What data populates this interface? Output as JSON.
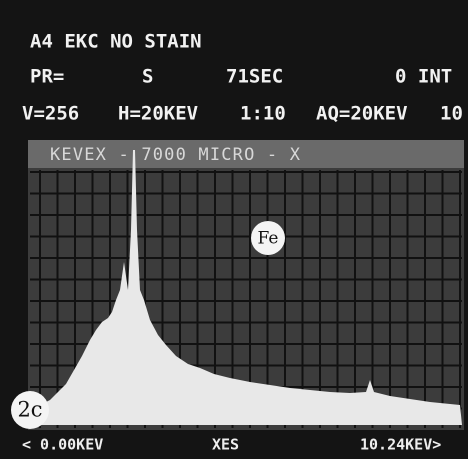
{
  "header": {
    "line1": "A4 EKC NO STAIN",
    "line2": [
      "PR=",
      "S",
      "71SEC",
      "0 INT"
    ],
    "line3": [
      "V=256",
      "H=20KEV",
      "1:10",
      "AQ=20KEV",
      "10"
    ]
  },
  "screen": {
    "banner": "KEVEX - 7000 MICRO - X",
    "peak_label": "Fe",
    "panel_label": "2c"
  },
  "footer": [
    "< 0.00KEV",
    "XES",
    "10.24KEV>"
  ]
}
